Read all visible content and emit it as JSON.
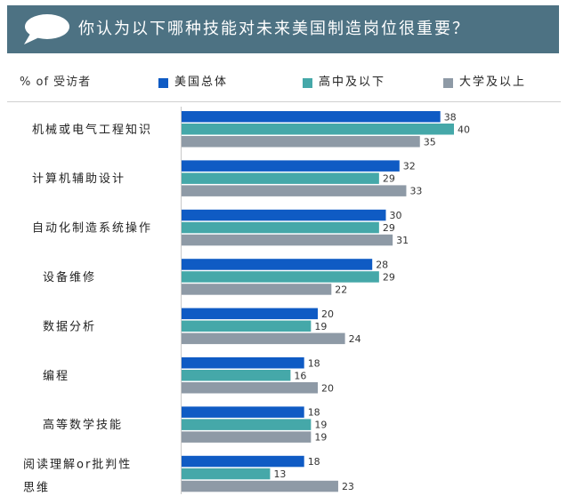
{
  "title": "你认为以下哪种技能对未来美国制造岗位很重要？",
  "legend": {
    "unit": "% of 受访者",
    "items": [
      {
        "label": "美国总体",
        "color": "#0f5bc4"
      },
      {
        "label": "高中及以下",
        "color": "#45a8a9"
      },
      {
        "label": "大学及以上",
        "color": "#8e9aa6"
      }
    ]
  },
  "chart_data": {
    "type": "bar",
    "orientation": "horizontal",
    "title": "你认为以下哪种技能对未来美国制造岗位很重要？",
    "categories": [
      [
        "机械或电气工程知识"
      ],
      [
        "计算机辅助设计"
      ],
      [
        "自动化制造系统操作"
      ],
      [
        "设备维修"
      ],
      [
        "数据分析"
      ],
      [
        "编程"
      ],
      [
        "高等数学技能"
      ],
      [
        "阅读理解or批判性",
        "思维"
      ]
    ],
    "series": [
      {
        "name": "美国总体",
        "color": "#0f5bc4",
        "values": [
          38,
          32,
          30,
          28,
          20,
          18,
          18,
          18
        ]
      },
      {
        "name": "高中及以下",
        "color": "#45a8a9",
        "values": [
          40,
          29,
          29,
          29,
          19,
          16,
          19,
          13
        ]
      },
      {
        "name": "大学及以上",
        "color": "#8e9aa6",
        "values": [
          35,
          33,
          31,
          22,
          24,
          20,
          19,
          23
        ]
      }
    ],
    "xlim": [
      0,
      40
    ],
    "grid": false,
    "legend_position": "top"
  }
}
